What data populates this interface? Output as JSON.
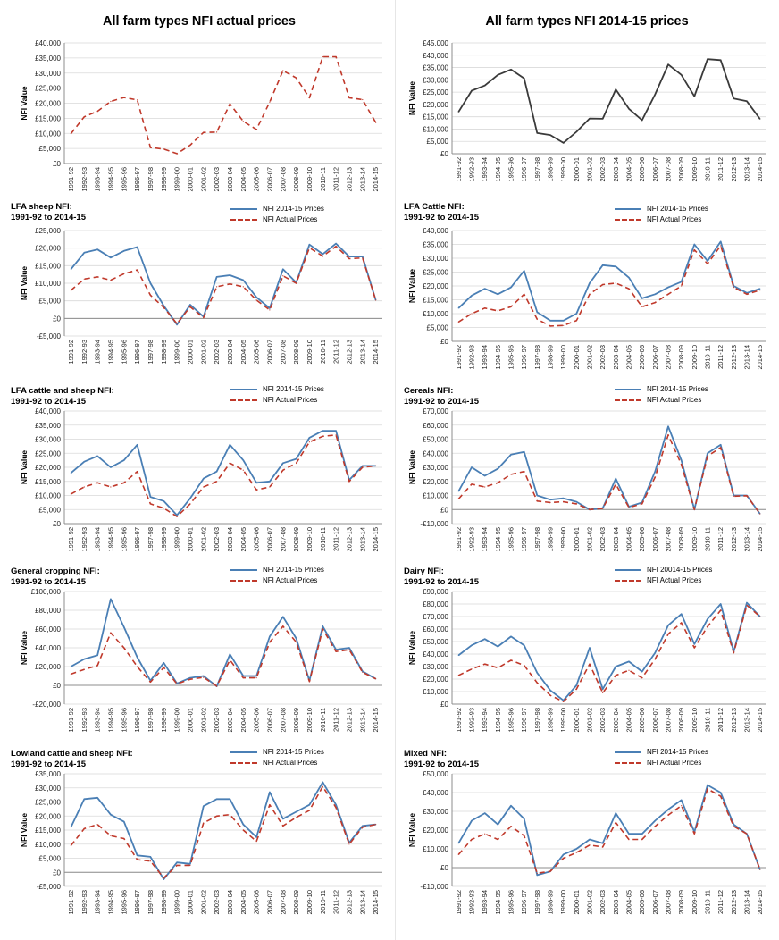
{
  "colors": {
    "prices_2014": "#4a7fb5",
    "actual": "#c0392b",
    "single_2014": "#3a3a3a",
    "grid": "#d9d9d9"
  },
  "x_labels": [
    "1991-92",
    "1992-93",
    "1993-94",
    "1994-95",
    "1995-96",
    "1996-97",
    "1997-98",
    "1998-99",
    "1999-00",
    "2000-01",
    "2001-02",
    "2002-03",
    "2003-04",
    "2004-05",
    "2005-06",
    "2006-07",
    "2007-08",
    "2008-09",
    "2009-10",
    "2010-11",
    "2011-12",
    "2012-13",
    "2013-14",
    "2014-15"
  ],
  "y_axis_label": "NFI Value",
  "chart_data": [
    {
      "type": "line",
      "title": "All farm types NFI actual prices",
      "ylabel": "NFI Value",
      "ylim": [
        0,
        40000
      ],
      "ystep": 5000,
      "grid": true,
      "legend": "none",
      "series": [
        {
          "key": "actual",
          "style": "dash",
          "values": [
            9900,
            15500,
            17300,
            20600,
            21900,
            21100,
            5300,
            4800,
            3300,
            6100,
            10300,
            10400,
            19800,
            14000,
            11300,
            20400,
            30800,
            28400,
            21800,
            35400,
            35400,
            21800,
            21200,
            13600
          ]
        }
      ]
    },
    {
      "type": "line",
      "title": "All farm types NFI 2014-15 prices",
      "ylabel": "NFI Value",
      "ylim": [
        0,
        45000
      ],
      "ystep": 5000,
      "grid": true,
      "legend": "none",
      "series": [
        {
          "key": "single_2014",
          "style": "solid",
          "values": [
            17000,
            25600,
            27700,
            32000,
            34200,
            30600,
            8400,
            7600,
            4400,
            8900,
            14300,
            14200,
            26100,
            18200,
            13600,
            24100,
            36200,
            32000,
            23300,
            38400,
            38000,
            22400,
            21300,
            14100
          ]
        }
      ]
    },
    {
      "type": "line",
      "title_lines": [
        "LFA sheep NFI:",
        "1991-92 to 2014-15"
      ],
      "ylabel": "NFI Value",
      "ylim": [
        -5000,
        25000
      ],
      "ystep": 5000,
      "grid": true,
      "legend": "top-right",
      "series": [
        {
          "key": "prices_2014",
          "name": "NFI 2014-15 Prices",
          "style": "solid",
          "values": [
            14000,
            18700,
            19600,
            17300,
            19200,
            20300,
            10000,
            3600,
            -1800,
            3900,
            500,
            11800,
            12300,
            10900,
            6000,
            2900,
            14000,
            10200,
            21000,
            18300,
            21300,
            17600,
            17600,
            5200
          ]
        },
        {
          "key": "actual",
          "name": "NFI Actual Prices",
          "style": "dash",
          "values": [
            8000,
            11200,
            11800,
            10900,
            12700,
            13800,
            6600,
            3100,
            -1500,
            3300,
            200,
            9000,
            9800,
            9000,
            5200,
            2400,
            12100,
            10000,
            20100,
            17700,
            20500,
            17000,
            17200,
            5200
          ]
        }
      ]
    },
    {
      "type": "line",
      "title_lines": [
        "LFA Cattle NFI:",
        "1991-92 to 2014-15"
      ],
      "ylabel": "NFI Value",
      "ylim": [
        0,
        40000
      ],
      "ystep": 5000,
      "grid": true,
      "legend": "top-right",
      "series": [
        {
          "key": "prices_2014",
          "name": "NFI 2014-15 Prices",
          "style": "solid",
          "values": [
            12000,
            16500,
            19000,
            17000,
            19500,
            25500,
            10500,
            7500,
            7500,
            10000,
            21000,
            27500,
            27000,
            23000,
            15500,
            17000,
            19500,
            21500,
            35000,
            29000,
            36000,
            20000,
            17500,
            19000
          ]
        },
        {
          "key": "actual",
          "name": "NFI Actual Prices",
          "style": "dash",
          "values": [
            7000,
            10000,
            12000,
            11000,
            12500,
            17000,
            8000,
            5500,
            5700,
            7500,
            17000,
            20500,
            21000,
            19000,
            12500,
            14000,
            17000,
            20000,
            33000,
            28000,
            34500,
            19500,
            17000,
            18500
          ]
        }
      ]
    },
    {
      "type": "line",
      "title_lines": [
        "LFA cattle and sheep NFI:",
        "1991-92 to 2014-15"
      ],
      "ylabel": "NFI Value",
      "ylim": [
        0,
        40000
      ],
      "ystep": 5000,
      "grid": true,
      "legend": "top-right",
      "series": [
        {
          "key": "prices_2014",
          "name": "NFI 2014-15 Prices",
          "style": "solid",
          "values": [
            18000,
            22000,
            24000,
            20000,
            22500,
            28000,
            9500,
            8000,
            3000,
            9000,
            16000,
            18500,
            28000,
            22500,
            14500,
            15000,
            21500,
            23000,
            30500,
            33000,
            33000,
            15500,
            20500,
            20500
          ]
        },
        {
          "key": "actual",
          "name": "NFI Actual Prices",
          "style": "dash",
          "values": [
            10500,
            13000,
            14500,
            13000,
            14500,
            18500,
            7000,
            5500,
            2500,
            7000,
            13000,
            15000,
            21500,
            19000,
            12000,
            13000,
            19000,
            21500,
            29000,
            31000,
            31500,
            15000,
            20000,
            20500
          ]
        }
      ]
    },
    {
      "type": "line",
      "title_lines": [
        "Cereals NFI:",
        "1991-92 to 2014-15"
      ],
      "ylabel": "NFI Value",
      "ylim": [
        -10000,
        70000
      ],
      "ystep": 10000,
      "grid": true,
      "legend": "top-right",
      "series": [
        {
          "key": "prices_2014",
          "name": "NFI 2014-15 Prices",
          "style": "solid",
          "values": [
            13000,
            30000,
            24000,
            29000,
            39000,
            41000,
            10000,
            7000,
            8000,
            5500,
            0,
            1000,
            22000,
            2000,
            5000,
            27000,
            59000,
            35000,
            0,
            40000,
            46000,
            10000,
            10000,
            -3000
          ]
        },
        {
          "key": "actual",
          "name": "NFI Actual Prices",
          "style": "dash",
          "values": [
            7500,
            18000,
            16000,
            19000,
            25000,
            27000,
            6000,
            5000,
            5500,
            4000,
            0,
            800,
            18000,
            1500,
            4000,
            23000,
            53000,
            32000,
            0,
            38000,
            44000,
            9500,
            9800,
            -3000
          ]
        }
      ]
    },
    {
      "type": "line",
      "title_lines": [
        "General cropping NFI:",
        "1991-92 to 2014-15"
      ],
      "ylabel": "NFI Value",
      "ylim": [
        -20000,
        100000
      ],
      "ystep": 20000,
      "grid": true,
      "legend": "top-right",
      "series": [
        {
          "key": "prices_2014",
          "name": "NFI 2014-15 Prices",
          "style": "solid",
          "values": [
            20000,
            28000,
            32000,
            92000,
            62000,
            30000,
            5000,
            24000,
            2000,
            8000,
            10000,
            -1000,
            33000,
            10000,
            10000,
            52000,
            73000,
            50000,
            5000,
            63000,
            38000,
            40000,
            15000,
            7000
          ]
        },
        {
          "key": "actual",
          "name": "NFI Actual Prices",
          "style": "dash",
          "values": [
            12000,
            17000,
            21000,
            56000,
            40000,
            20000,
            3500,
            19000,
            1500,
            6500,
            8500,
            -800,
            27000,
            8000,
            8000,
            46000,
            63000,
            46000,
            4000,
            60000,
            36000,
            38000,
            14000,
            7000
          ]
        }
      ]
    },
    {
      "type": "line",
      "title_lines": [
        "Dairy NFI:",
        "1991-92 to 2014-15"
      ],
      "ylabel": "NFI Value",
      "ylim": [
        0,
        90000
      ],
      "ystep": 10000,
      "grid": true,
      "legend": "top-right",
      "series": [
        {
          "key": "prices_2014",
          "name": "NFI 20014-15 Prices",
          "style": "solid",
          "values": [
            39000,
            47000,
            52000,
            46000,
            54000,
            47000,
            25000,
            11000,
            3000,
            15000,
            45000,
            12000,
            30000,
            34000,
            26000,
            41000,
            63000,
            72000,
            48000,
            68000,
            80000,
            42000,
            81000,
            70000
          ]
        },
        {
          "key": "actual",
          "name": "NFI Actual Prices",
          "style": "dash",
          "values": [
            23000,
            28000,
            32000,
            29000,
            35000,
            31000,
            17000,
            7000,
            2000,
            12000,
            32000,
            9000,
            23000,
            27000,
            21000,
            36000,
            56000,
            65000,
            45000,
            62000,
            75000,
            41000,
            79000,
            70000
          ]
        }
      ]
    },
    {
      "type": "line",
      "title_lines": [
        "Lowland cattle and sheep NFI:",
        "1991-92 to 2014-15"
      ],
      "ylabel": "NFI Value",
      "ylim": [
        -5000,
        35000
      ],
      "ystep": 5000,
      "grid": true,
      "legend": "top-right",
      "series": [
        {
          "key": "prices_2014",
          "name": "NFI 2014-15 Prices",
          "style": "solid",
          "values": [
            16000,
            26000,
            26500,
            20500,
            18000,
            6000,
            5500,
            -2500,
            3500,
            3000,
            23500,
            26000,
            26000,
            17000,
            12500,
            28500,
            19000,
            21500,
            24000,
            32000,
            24000,
            10500,
            16500,
            17000
          ]
        },
        {
          "key": "actual",
          "name": "NFI Actual Prices",
          "style": "dash",
          "values": [
            9500,
            15500,
            17000,
            13000,
            12000,
            4500,
            4000,
            -2000,
            2500,
            2500,
            17500,
            20000,
            20500,
            15000,
            11000,
            24000,
            16500,
            19500,
            22000,
            30500,
            23000,
            10000,
            16000,
            17000
          ]
        }
      ]
    },
    {
      "type": "line",
      "title_lines": [
        "Mixed NFI:",
        "1991-92 to 2014-15"
      ],
      "ylabel": "NFI Value",
      "ylim": [
        -10000,
        50000
      ],
      "ystep": 10000,
      "grid": true,
      "legend": "top-right",
      "series": [
        {
          "key": "prices_2014",
          "name": "NFI 2014-15 Prices",
          "style": "solid",
          "values": [
            13000,
            25000,
            29000,
            23000,
            33000,
            26000,
            -4000,
            -2000,
            7000,
            10000,
            15000,
            13000,
            29000,
            18000,
            18000,
            25000,
            31000,
            36000,
            19000,
            44000,
            40000,
            23000,
            18000,
            -1000
          ]
        },
        {
          "key": "actual",
          "name": "NFI Actual Prices",
          "style": "dash",
          "values": [
            7000,
            15000,
            18000,
            15000,
            22000,
            17000,
            -3000,
            -2000,
            5000,
            8000,
            12000,
            11000,
            24000,
            15000,
            15000,
            22000,
            28000,
            33000,
            18000,
            42000,
            38000,
            22000,
            18000,
            -1000
          ]
        }
      ]
    }
  ]
}
